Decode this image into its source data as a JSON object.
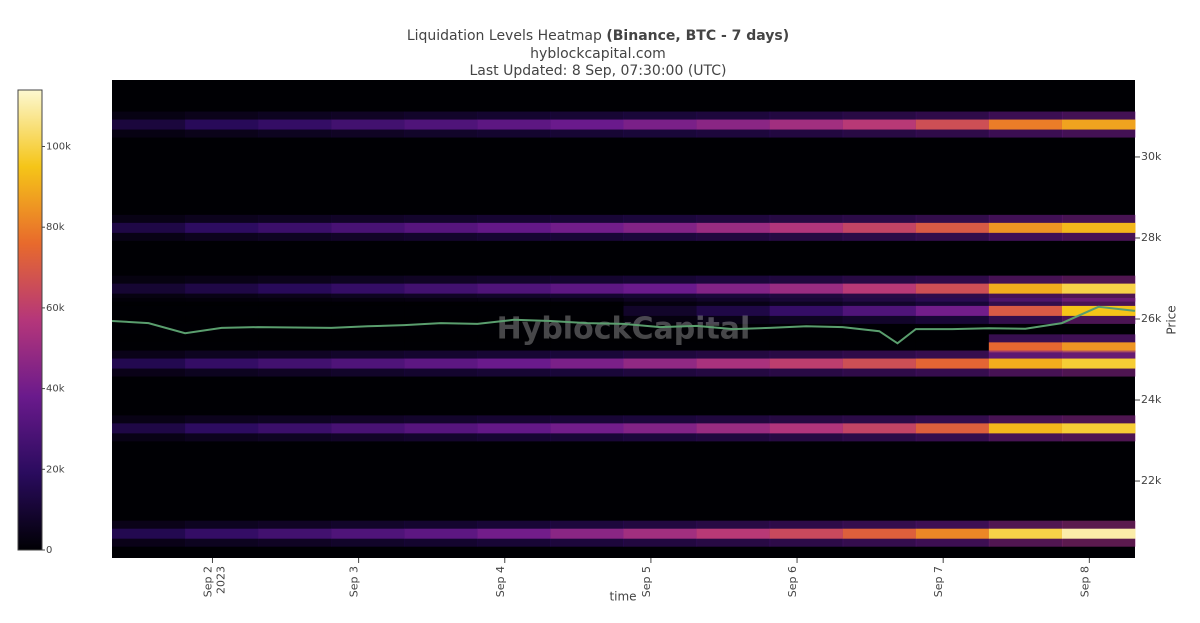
{
  "chart_data": {
    "type": "heatmap",
    "title": "Liquidation Levels Heatmap",
    "title_bold": "(Binance, BTC - 7 days)",
    "subtitle": "hyblockcapital.com",
    "updated": "Last Updated: 8 Sep, 07:30:00 (UTC)",
    "watermark": "HyblockCapital",
    "x_label": "time",
    "y_label": "Price",
    "xlim": [
      "2023-09-01T07:30",
      "2023-09-08T07:30"
    ],
    "xticks": [
      {
        "value": "2023-09-02T00:00",
        "label": "Sep 2"
      },
      {
        "value": "2023-09-03T00:00",
        "label": "Sep 3"
      },
      {
        "value": "2023-09-04T00:00",
        "label": "Sep 4"
      },
      {
        "value": "2023-09-05T00:00",
        "label": "Sep 5"
      },
      {
        "value": "2023-09-06T00:00",
        "label": "Sep 6"
      },
      {
        "value": "2023-09-07T00:00",
        "label": "Sep 7"
      },
      {
        "value": "2023-09-08T00:00",
        "label": "Sep 8"
      }
    ],
    "xtick_year": "2023",
    "ylim": [
      20100,
      31900
    ],
    "yticks": [
      {
        "value": 22000,
        "label": "22k"
      },
      {
        "value": 24000,
        "label": "24k"
      },
      {
        "value": 26000,
        "label": "26k"
      },
      {
        "value": 28000,
        "label": "28k"
      },
      {
        "value": 30000,
        "label": "30k"
      }
    ],
    "zlim": [
      0,
      114000
    ],
    "zticks": [
      0,
      {
        "value": 20000,
        "label": "20k"
      },
      {
        "value": 40000,
        "label": "40k"
      },
      {
        "value": 60000,
        "label": "60k"
      },
      {
        "value": 80000,
        "label": "80k"
      },
      {
        "value": 100000,
        "label": "100k"
      }
    ],
    "colorscale": [
      "#000004",
      "#2a0b5e",
      "#6a1a8c",
      "#b5367a",
      "#e86a2c",
      "#f5c518",
      "#fcf8d0"
    ],
    "x": [
      "2023-09-01T07:30",
      "2023-09-01T19:30",
      "2023-09-02T07:30",
      "2023-09-02T19:30",
      "2023-09-03T07:30",
      "2023-09-03T19:30",
      "2023-09-04T07:30",
      "2023-09-04T19:30",
      "2023-09-05T07:30",
      "2023-09-05T19:30",
      "2023-09-06T07:30",
      "2023-09-06T19:30",
      "2023-09-07T07:30",
      "2023-09-07T19:30"
    ],
    "y": [
      30800,
      28250,
      26750,
      26200,
      25300,
      24900,
      23300,
      20700
    ],
    "z": [
      [
        12000,
        18000,
        22000,
        26000,
        30000,
        34000,
        38000,
        42000,
        46000,
        52000,
        58000,
        66000,
        80000,
        88000
      ],
      [
        14000,
        20000,
        24000,
        28000,
        32000,
        36000,
        40000,
        44000,
        50000,
        56000,
        62000,
        70000,
        85000,
        92000
      ],
      [
        10000,
        14000,
        18000,
        22000,
        26000,
        30000,
        34000,
        38000,
        44000,
        50000,
        58000,
        66000,
        90000,
        100000
      ],
      [
        0,
        0,
        0,
        0,
        0,
        0,
        0,
        8000,
        14000,
        22000,
        30000,
        40000,
        70000,
        95000
      ],
      [
        0,
        0,
        0,
        0,
        0,
        0,
        0,
        0,
        0,
        0,
        0,
        0,
        75000,
        85000
      ],
      [
        16000,
        22000,
        26000,
        30000,
        34000,
        38000,
        42000,
        48000,
        54000,
        60000,
        66000,
        74000,
        90000,
        98000
      ],
      [
        14000,
        20000,
        24000,
        28000,
        32000,
        36000,
        40000,
        44000,
        50000,
        56000,
        62000,
        72000,
        92000,
        98000
      ],
      [
        16000,
        22000,
        26000,
        30000,
        34000,
        40000,
        46000,
        52000,
        58000,
        64000,
        72000,
        82000,
        100000,
        110000
      ]
    ],
    "line": {
      "color": "#5a9e6e",
      "x": [
        "2023-09-01T07:30",
        "2023-09-01T13:30",
        "2023-09-01T19:30",
        "2023-09-02T01:30",
        "2023-09-02T07:30",
        "2023-09-02T13:30",
        "2023-09-02T19:30",
        "2023-09-03T01:30",
        "2023-09-03T07:30",
        "2023-09-03T13:30",
        "2023-09-03T19:30",
        "2023-09-04T01:30",
        "2023-09-04T07:30",
        "2023-09-04T13:30",
        "2023-09-04T19:30",
        "2023-09-05T01:30",
        "2023-09-05T07:30",
        "2023-09-05T13:30",
        "2023-09-05T19:30",
        "2023-09-06T01:30",
        "2023-09-06T07:30",
        "2023-09-06T13:30",
        "2023-09-06T16:30",
        "2023-09-06T19:30",
        "2023-09-07T01:30",
        "2023-09-07T07:30",
        "2023-09-07T13:30",
        "2023-09-07T19:30",
        "2023-09-08T01:30",
        "2023-09-08T07:30"
      ],
      "values": [
        25950,
        25900,
        25650,
        25780,
        25800,
        25790,
        25780,
        25820,
        25850,
        25900,
        25880,
        25980,
        25950,
        25900,
        25880,
        25800,
        25830,
        25750,
        25780,
        25820,
        25800,
        25700,
        25400,
        25750,
        25750,
        25770,
        25760,
        25900,
        26300,
        26200
      ]
    }
  }
}
